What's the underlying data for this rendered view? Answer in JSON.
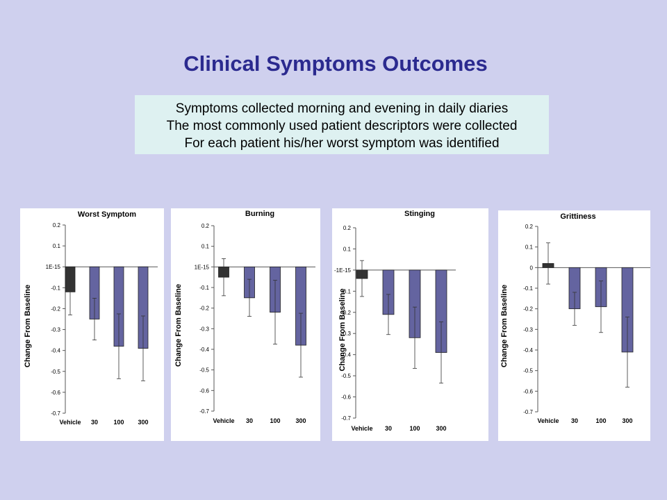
{
  "slide_title": "Clinical Symptoms Outcomes",
  "info_lines": [
    "Symptoms collected morning and evening in daily diaries",
    "The most commonly used patient descriptors were collected",
    "For each patient his/her worst symptom was identified"
  ],
  "colors": {
    "background": "#cfd0ee",
    "title": "#2b2a8f",
    "info_box": "#def1f1",
    "vehicle_bar": "#333333",
    "drug_bar": "#6464a0"
  },
  "chart_data": [
    {
      "type": "bar",
      "title": "Worst Symptom",
      "ylabel": "Change From Baseline",
      "categories": [
        "Vehicle",
        "30",
        "100",
        "300"
      ],
      "values": [
        -0.12,
        -0.25,
        -0.38,
        -0.39
      ],
      "error": [
        0.11,
        0.1,
        0.155,
        0.155
      ],
      "yticks": [
        "0.2",
        "0.1",
        "1E-15",
        "-0.1",
        "-0.2",
        "-0.3",
        "-0.4",
        "-0.5",
        "-0.6",
        "-0.7"
      ],
      "ylim": [
        -0.7,
        0.2
      ]
    },
    {
      "type": "bar",
      "title": "Burning",
      "ylabel": "Change From Baseline",
      "categories": [
        "Vehicle",
        "30",
        "100",
        "300"
      ],
      "values": [
        -0.05,
        -0.15,
        -0.22,
        -0.38
      ],
      "error": [
        0.09,
        0.09,
        0.155,
        0.155
      ],
      "yticks": [
        "0.2",
        "0.1",
        "1E-15",
        "-0.1",
        "-0.2",
        "-0.3",
        "-0.4",
        "-0.5",
        "-0.6",
        "-0.7"
      ],
      "ylim": [
        -0.7,
        0.2
      ]
    },
    {
      "type": "bar",
      "title": "Stinging",
      "ylabel": "Change From Baseline",
      "categories": [
        "Vehicle",
        "30",
        "100",
        "300"
      ],
      "values": [
        -0.04,
        -0.21,
        -0.32,
        -0.39
      ],
      "error": [
        0.085,
        0.095,
        0.145,
        0.145
      ],
      "yticks": [
        "0.2",
        "0.1",
        "-1E-15",
        "-0.1",
        "-0.2",
        "-0.3",
        "-0.4",
        "-0.5",
        "-0.6",
        "-0.7"
      ],
      "ylim": [
        -0.7,
        0.2
      ]
    },
    {
      "type": "bar",
      "title": "Grittiness",
      "ylabel": "Change From Baseline",
      "categories": [
        "Vehicle",
        "30",
        "100",
        "300"
      ],
      "values": [
        0.02,
        -0.2,
        -0.19,
        -0.41
      ],
      "error": [
        0.1,
        0.08,
        0.125,
        0.17
      ],
      "yticks": [
        "0.2",
        "0.1",
        "0",
        "-0.1",
        "-0.2",
        "-0.3",
        "-0.4",
        "-0.5",
        "-0.6",
        "-0.7"
      ],
      "ylim": [
        -0.7,
        0.2
      ]
    }
  ]
}
